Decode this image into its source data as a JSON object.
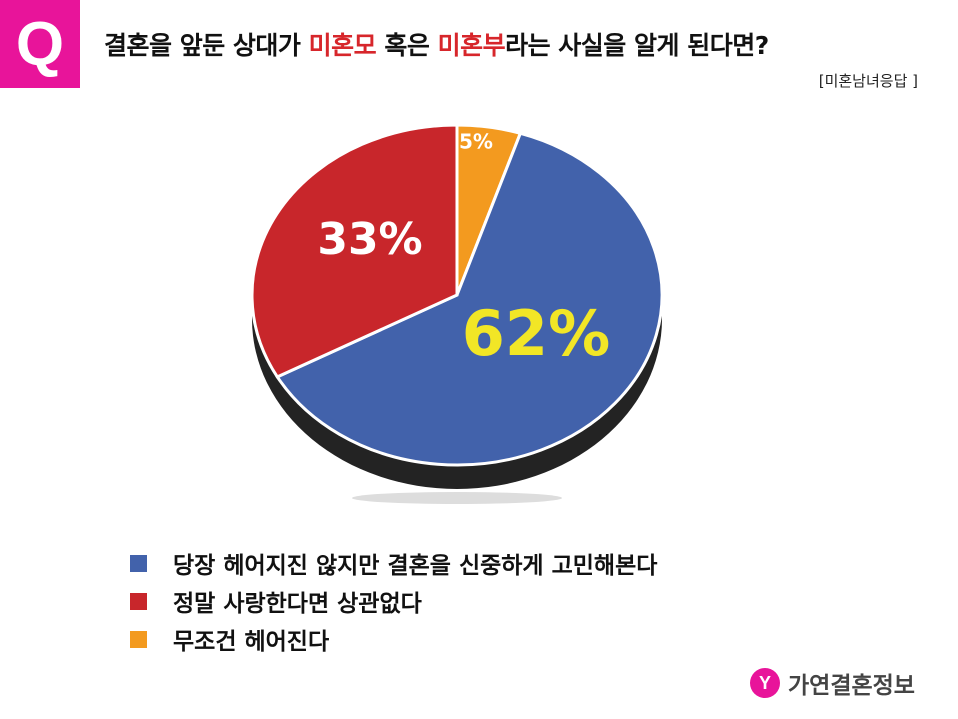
{
  "header": {
    "q_badge": "Q",
    "title_parts": [
      "결혼을 앞둔 상대가 ",
      "미혼모",
      " 혹은 ",
      "미혼부",
      "라는 사실을 알게 된다면?"
    ],
    "subtitle": "[미혼남녀응답 ]"
  },
  "chart_data": {
    "type": "pie",
    "categories": [
      "무조건 헤어진다",
      "당장 헤어지진 않지만 결혼을 신중하게 고민해본다",
      "정말 사랑한다면 상관없다"
    ],
    "values": [
      5,
      62,
      33
    ],
    "labels": [
      "5%",
      "62%",
      "33%"
    ],
    "colors": [
      "#f39a1f",
      "#4262ab",
      "#c8262b"
    ],
    "label_colors": [
      "#ffffff",
      "#f2e626",
      "#ffffff"
    ],
    "legend_placement": "bottom-left"
  },
  "legend": [
    {
      "label": "당장 헤어지진 않지만 결혼을 신중하게 고민해본다",
      "color": "#4262ab"
    },
    {
      "label": "정말 사랑한다면 상관없다",
      "color": "#c8262b"
    },
    {
      "label": "무조건 헤어진다",
      "color": "#f39a1f"
    }
  ],
  "brand": {
    "mark": "Y",
    "name": "가연결혼정보"
  }
}
